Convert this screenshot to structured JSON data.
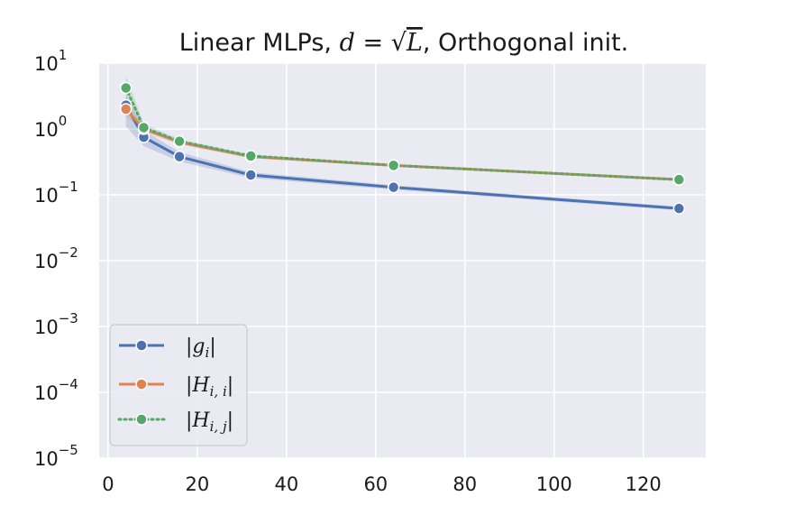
{
  "chart_data": {
    "type": "line",
    "title": "Linear MLPs, d = √L, Orthogonal init.",
    "title_parts": {
      "prefix": "Linear MLPs, ",
      "var_d": "d",
      "equals": " = ",
      "sqrt_symbol": "√",
      "var_L": "L",
      "suffix": ", Orthogonal init."
    },
    "xlabel": "",
    "ylabel": "",
    "yscale": "log",
    "xlim": [
      -2,
      134
    ],
    "ylim_exp": [
      -5,
      1
    ],
    "xticks": [
      0,
      20,
      40,
      60,
      80,
      100,
      120
    ],
    "yticks": [
      {
        "base": "10",
        "exp": "1",
        "value_exp": 1
      },
      {
        "base": "10",
        "exp": "0",
        "value_exp": 0
      },
      {
        "base": "10",
        "exp": "−1",
        "value_exp": -1
      },
      {
        "base": "10",
        "exp": "−2",
        "value_exp": -2
      },
      {
        "base": "10",
        "exp": "−3",
        "value_exp": -3
      },
      {
        "base": "10",
        "exp": "−4",
        "value_exp": -4
      },
      {
        "base": "10",
        "exp": "−5",
        "value_exp": -5
      }
    ],
    "grid": true,
    "legend_position": "lower-left",
    "x": [
      4,
      8,
      16,
      32,
      64,
      128
    ],
    "series": [
      {
        "name": "|g_i|",
        "legend_label": {
          "open": "|",
          "var": "g",
          "sub": "i",
          "close": "|"
        },
        "color": "#4c72b0",
        "style": "solid",
        "values": [
          2.3,
          0.75,
          0.38,
          0.2,
          0.13,
          0.062
        ],
        "ci_low": [
          1.1,
          0.55,
          0.32,
          0.18,
          0.12,
          0.058
        ],
        "ci_high": [
          3.3,
          0.95,
          0.45,
          0.22,
          0.14,
          0.066
        ]
      },
      {
        "name": "|H_i,i|",
        "legend_label": {
          "open": "|",
          "var": "H",
          "sub": "i, i",
          "close": "|"
        },
        "color": "#dd8452",
        "style": "solid",
        "values": [
          2.0,
          1.0,
          0.63,
          0.38,
          0.28,
          0.17
        ],
        "ci_low": [
          1.6,
          0.9,
          0.58,
          0.36,
          0.27,
          0.165
        ],
        "ci_high": [
          2.5,
          1.1,
          0.68,
          0.4,
          0.29,
          0.175
        ]
      },
      {
        "name": "|H_i,j|",
        "legend_label": {
          "open": "|",
          "var": "H",
          "sub": "i, j",
          "close": "|"
        },
        "color": "#55a868",
        "style": "dotted",
        "values": [
          4.2,
          1.05,
          0.65,
          0.39,
          0.28,
          0.17
        ],
        "ci_low": [
          2.8,
          0.95,
          0.6,
          0.37,
          0.27,
          0.165
        ],
        "ci_high": [
          6.5,
          1.2,
          0.7,
          0.41,
          0.29,
          0.175
        ]
      }
    ]
  },
  "colors": {
    "plot_background": "#eaeaf2",
    "grid": "#ffffff",
    "legend_border": "#cccccc"
  }
}
